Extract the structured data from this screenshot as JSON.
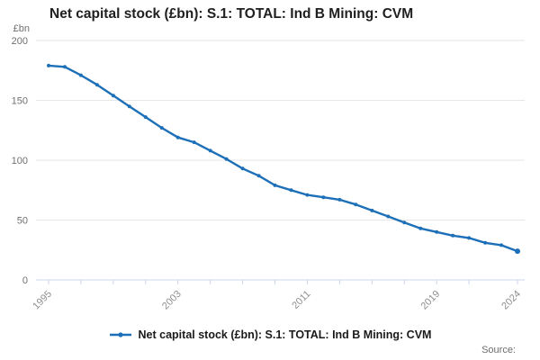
{
  "title": "Net capital stock (£bn): S.1: TOTAL: Ind B Mining: CVM",
  "y_unit": "£bn",
  "legend": {
    "label": "Net capital stock (£bn): S.1: TOTAL: Ind B Mining: CVM"
  },
  "source": {
    "label": "Source:"
  },
  "colors": {
    "line": "#1d70b8",
    "grid": "#e6e6e6",
    "axis": "#ccd6eb",
    "y_label": "#707070",
    "x_label": "#8f8f8f",
    "title": "#202020",
    "legend_text": "#1a1a1a",
    "source_text": "#6e6e6e"
  },
  "chart_data": {
    "type": "line",
    "title": "Net capital stock (£bn): S.1: TOTAL: Ind B Mining: CVM",
    "unit": "£bn",
    "xlabel": "",
    "ylabel": "£bn",
    "x": [
      1995,
      1996,
      1997,
      1998,
      1999,
      2000,
      2001,
      2002,
      2003,
      2004,
      2005,
      2006,
      2007,
      2008,
      2009,
      2010,
      2011,
      2012,
      2013,
      2014,
      2015,
      2016,
      2017,
      2018,
      2019,
      2020,
      2021,
      2022,
      2023,
      2024
    ],
    "series": [
      {
        "name": "Net capital stock (£bn): S.1: TOTAL: Ind B Mining: CVM",
        "values": [
          179,
          178,
          171,
          163,
          154,
          145,
          136,
          127,
          119,
          115,
          108,
          101,
          93,
          87,
          79,
          75,
          71,
          69,
          67,
          63,
          58,
          53,
          48,
          43,
          40,
          37,
          35,
          31,
          29,
          24
        ]
      }
    ],
    "ylim": [
      0,
      200
    ],
    "yticks": [
      0,
      50,
      100,
      150,
      200
    ],
    "xticks": [
      1995,
      1997,
      1999,
      2001,
      2003,
      2005,
      2007,
      2009,
      2011,
      2013,
      2015,
      2017,
      2019,
      2021,
      2024
    ],
    "xtick_labels": [
      1995,
      2003,
      2011,
      2019,
      2024
    ],
    "grid": true,
    "legend_position": "bottom",
    "marker": "circle"
  }
}
